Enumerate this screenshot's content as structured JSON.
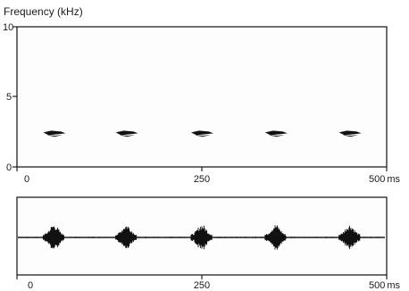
{
  "chart_data": [
    {
      "type": "scatter",
      "ylabel": "Frequency (kHz)",
      "xlim": [
        0,
        500
      ],
      "ylim": [
        0,
        10
      ],
      "x_ticks": [
        "0",
        "250",
        "500"
      ],
      "x_unit": "ms",
      "y_ticks": [
        "0",
        "5",
        "10"
      ],
      "grid": false,
      "series": [
        {
          "points": [
            {
              "t": 50,
              "f": 2.4
            },
            {
              "t": 148,
              "f": 2.4
            },
            {
              "t": 250,
              "f": 2.4
            },
            {
              "t": 350,
              "f": 2.4
            },
            {
              "t": 450,
              "f": 2.4
            }
          ]
        }
      ]
    },
    {
      "type": "line",
      "xlim": [
        0,
        500
      ],
      "x_ticks": [
        "0",
        "250",
        "500"
      ],
      "x_unit": "ms",
      "grid": false,
      "series": [
        {
          "bursts_ms": [
            50,
            148,
            250,
            350,
            450
          ]
        }
      ]
    }
  ]
}
